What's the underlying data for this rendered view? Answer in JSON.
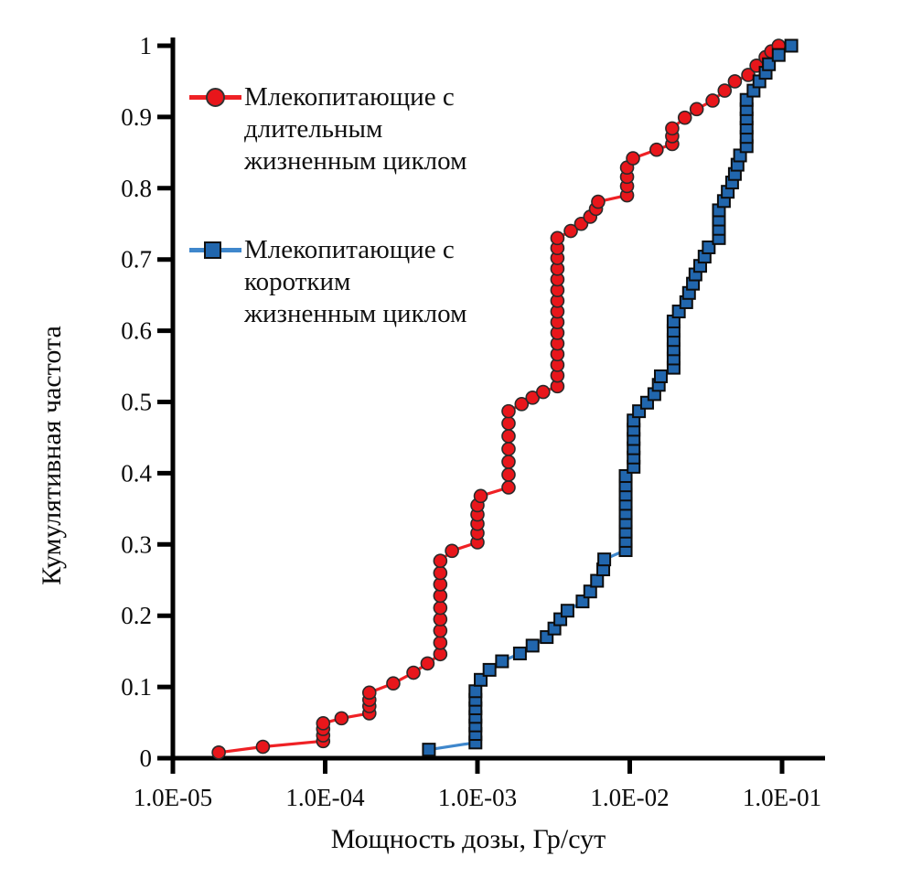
{
  "axes": {
    "x": {
      "title": "Мощность дозы, Гр/сут",
      "scale": "log",
      "range": [
        1e-05,
        0.2
      ],
      "tick_values": [
        1e-05,
        0.0001,
        0.001,
        0.01,
        0.1
      ],
      "tick_labels": [
        "1.0E-05",
        "1.0E-04",
        "1.0E-03",
        "1.0E-02",
        "1.0E-01"
      ]
    },
    "y": {
      "title": "Кумулятивная частота",
      "scale": "linear",
      "range": [
        0,
        1
      ],
      "tick_values": [
        0,
        0.1,
        0.2,
        0.3,
        0.4,
        0.5,
        0.6,
        0.7,
        0.8,
        0.9,
        1
      ],
      "tick_labels": [
        "0",
        "0.1",
        "0.2",
        "0.3",
        "0.4",
        "0.5",
        "0.6",
        "0.7",
        "0.8",
        "0.9",
        "1"
      ]
    }
  },
  "legend": {
    "items": [
      {
        "label_lines": [
          "Млекопитающие с",
          "длительным",
          "жизненным циклом"
        ],
        "marker": "circle",
        "color": "#e8161b",
        "line_color": "#ef2125"
      },
      {
        "label_lines": [
          "Млекопитающие с",
          "коротким",
          "жизненным циклом"
        ],
        "marker": "square",
        "color": "#2166ad",
        "line_color": "#3f87cc"
      }
    ]
  },
  "chart_data": {
    "type": "line",
    "title": "",
    "xlabel": "Мощность дозы, Гр/сут",
    "ylabel": "Кумулятивная частота",
    "x_scale": "log",
    "xlim": [
      1e-05,
      0.2
    ],
    "ylim": [
      0,
      1
    ],
    "grid": false,
    "legend_position": "upper-left-inside",
    "series": [
      {
        "name": "Млекопитающие с длительным жизненным циклом",
        "marker": "circle",
        "color": "#e8161b",
        "line_color": "#ef2125",
        "points": [
          [
            2e-05,
            0.008
          ],
          [
            3.9e-05,
            0.016
          ],
          [
            9.7e-05,
            0.024
          ],
          [
            9.7e-05,
            0.032
          ],
          [
            9.7e-05,
            0.041
          ],
          [
            9.7e-05,
            0.049
          ],
          [
            0.000128,
            0.056
          ],
          [
            0.000195,
            0.063
          ],
          [
            0.000195,
            0.073
          ],
          [
            0.000195,
            0.082
          ],
          [
            0.000195,
            0.092
          ],
          [
            0.00028,
            0.105
          ],
          [
            0.00038,
            0.12
          ],
          [
            0.00047,
            0.133
          ],
          [
            0.00057,
            0.146
          ],
          [
            0.00057,
            0.162
          ],
          [
            0.00057,
            0.179
          ],
          [
            0.00057,
            0.195
          ],
          [
            0.00057,
            0.211
          ],
          [
            0.00057,
            0.228
          ],
          [
            0.00057,
            0.244
          ],
          [
            0.00057,
            0.26
          ],
          [
            0.00057,
            0.277
          ],
          [
            0.00068,
            0.291
          ],
          [
            0.001,
            0.303
          ],
          [
            0.001,
            0.316
          ],
          [
            0.001,
            0.329
          ],
          [
            0.001,
            0.342
          ],
          [
            0.001,
            0.355
          ],
          [
            0.00105,
            0.368
          ],
          [
            0.0016,
            0.38
          ],
          [
            0.0016,
            0.398
          ],
          [
            0.0016,
            0.416
          ],
          [
            0.0016,
            0.434
          ],
          [
            0.0016,
            0.452
          ],
          [
            0.0016,
            0.47
          ],
          [
            0.0016,
            0.487
          ],
          [
            0.00195,
            0.497
          ],
          [
            0.0023,
            0.506
          ],
          [
            0.0027,
            0.514
          ],
          [
            0.00335,
            0.522
          ],
          [
            0.00335,
            0.537
          ],
          [
            0.00335,
            0.552
          ],
          [
            0.00335,
            0.567
          ],
          [
            0.00335,
            0.582
          ],
          [
            0.00335,
            0.597
          ],
          [
            0.00335,
            0.612
          ],
          [
            0.00335,
            0.627
          ],
          [
            0.00335,
            0.642
          ],
          [
            0.00335,
            0.657
          ],
          [
            0.00335,
            0.672
          ],
          [
            0.00335,
            0.687
          ],
          [
            0.00335,
            0.702
          ],
          [
            0.00335,
            0.716
          ],
          [
            0.00335,
            0.73
          ],
          [
            0.0041,
            0.74
          ],
          [
            0.0048,
            0.75
          ],
          [
            0.0055,
            0.76
          ],
          [
            0.006,
            0.771
          ],
          [
            0.0062,
            0.781
          ],
          [
            0.0096,
            0.79
          ],
          [
            0.0096,
            0.803
          ],
          [
            0.0096,
            0.816
          ],
          [
            0.0096,
            0.829
          ],
          [
            0.0105,
            0.842
          ],
          [
            0.015,
            0.854
          ],
          [
            0.019,
            0.862
          ],
          [
            0.019,
            0.873
          ],
          [
            0.019,
            0.884
          ],
          [
            0.023,
            0.899
          ],
          [
            0.0275,
            0.911
          ],
          [
            0.035,
            0.923
          ],
          [
            0.042,
            0.937
          ],
          [
            0.049,
            0.95
          ],
          [
            0.06,
            0.959
          ],
          [
            0.068,
            0.972
          ],
          [
            0.078,
            0.984
          ],
          [
            0.085,
            0.992
          ],
          [
            0.095,
            1.0
          ]
        ]
      },
      {
        "name": "Млекопитающие с коротким жизненным циклом",
        "marker": "square",
        "color": "#2166ad",
        "line_color": "#3f87cc",
        "points": [
          [
            0.00048,
            0.012
          ],
          [
            0.00097,
            0.022
          ],
          [
            0.00097,
            0.034
          ],
          [
            0.00097,
            0.046
          ],
          [
            0.00097,
            0.058
          ],
          [
            0.00097,
            0.07
          ],
          [
            0.00097,
            0.082
          ],
          [
            0.00097,
            0.094
          ],
          [
            0.00105,
            0.11
          ],
          [
            0.0012,
            0.124
          ],
          [
            0.00145,
            0.136
          ],
          [
            0.0019,
            0.147
          ],
          [
            0.0023,
            0.158
          ],
          [
            0.00285,
            0.17
          ],
          [
            0.0032,
            0.182
          ],
          [
            0.0035,
            0.195
          ],
          [
            0.0039,
            0.207
          ],
          [
            0.0049,
            0.22
          ],
          [
            0.0055,
            0.234
          ],
          [
            0.0061,
            0.249
          ],
          [
            0.0067,
            0.265
          ],
          [
            0.0068,
            0.279
          ],
          [
            0.0094,
            0.292
          ],
          [
            0.0094,
            0.305
          ],
          [
            0.0094,
            0.318
          ],
          [
            0.0094,
            0.331
          ],
          [
            0.0094,
            0.344
          ],
          [
            0.0094,
            0.357
          ],
          [
            0.0094,
            0.37
          ],
          [
            0.0094,
            0.383
          ],
          [
            0.0094,
            0.396
          ],
          [
            0.0106,
            0.409
          ],
          [
            0.0106,
            0.422
          ],
          [
            0.0106,
            0.435
          ],
          [
            0.0106,
            0.448
          ],
          [
            0.0106,
            0.461
          ],
          [
            0.0106,
            0.474
          ],
          [
            0.0115,
            0.487
          ],
          [
            0.013,
            0.499
          ],
          [
            0.0145,
            0.511
          ],
          [
            0.0155,
            0.524
          ],
          [
            0.016,
            0.536
          ],
          [
            0.0194,
            0.548
          ],
          [
            0.0194,
            0.561
          ],
          [
            0.0194,
            0.574
          ],
          [
            0.0194,
            0.587
          ],
          [
            0.0194,
            0.6
          ],
          [
            0.0194,
            0.613
          ],
          [
            0.021,
            0.627
          ],
          [
            0.0235,
            0.64
          ],
          [
            0.0245,
            0.653
          ],
          [
            0.026,
            0.666
          ],
          [
            0.027,
            0.679
          ],
          [
            0.029,
            0.691
          ],
          [
            0.031,
            0.704
          ],
          [
            0.033,
            0.717
          ],
          [
            0.0385,
            0.73
          ],
          [
            0.0385,
            0.743
          ],
          [
            0.0385,
            0.756
          ],
          [
            0.0385,
            0.769
          ],
          [
            0.0415,
            0.782
          ],
          [
            0.044,
            0.795
          ],
          [
            0.047,
            0.808
          ],
          [
            0.049,
            0.82
          ],
          [
            0.051,
            0.833
          ],
          [
            0.053,
            0.846
          ],
          [
            0.0585,
            0.859
          ],
          [
            0.0585,
            0.872
          ],
          [
            0.0585,
            0.885
          ],
          [
            0.0585,
            0.898
          ],
          [
            0.0585,
            0.911
          ],
          [
            0.0585,
            0.924
          ],
          [
            0.065,
            0.937
          ],
          [
            0.071,
            0.95
          ],
          [
            0.078,
            0.962
          ],
          [
            0.082,
            0.974
          ],
          [
            0.095,
            0.987
          ],
          [
            0.115,
            1.0
          ]
        ]
      }
    ]
  }
}
